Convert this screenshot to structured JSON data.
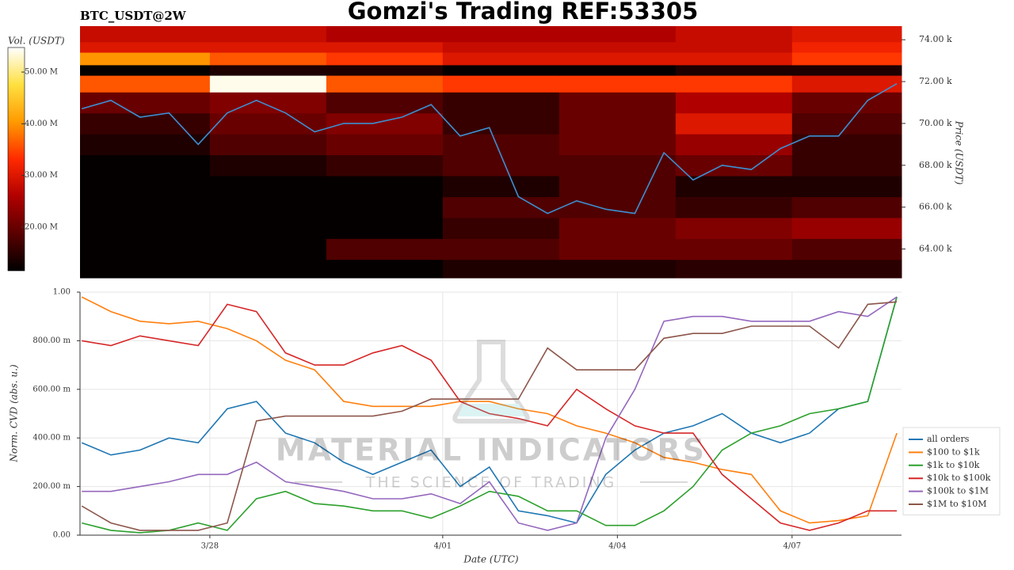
{
  "chart_data": [
    {
      "type": "heatmap",
      "title": "Gomzi's Trading REF:53305",
      "subtitle": "BTC_USDT@2W",
      "ylabel": "Price (USDT)",
      "xlim": [
        -2.23,
        11.88
      ],
      "ylim": [
        62.62,
        74.65
      ],
      "yticks": [
        {
          "value": 64,
          "label": "64.00 k"
        },
        {
          "value": 66,
          "label": "66.00 k"
        },
        {
          "value": 68,
          "label": "68.00 k"
        },
        {
          "value": 70,
          "label": "70.00 k"
        },
        {
          "value": 72,
          "label": "72.00 k"
        },
        {
          "value": 74,
          "label": "74.00 k"
        }
      ],
      "colorbar": {
        "label": "Vol. (USDT)",
        "lim": [
          11.58,
          54.75
        ],
        "ticks": [
          {
            "value": 20,
            "label": "20.00 M"
          },
          {
            "value": 30,
            "label": "30.00 M"
          },
          {
            "value": 40,
            "label": "40.00 M"
          },
          {
            "value": 50,
            "label": "50.00 M"
          }
        ],
        "colormap": [
          "#000000",
          "#5a0000",
          "#b00000",
          "#ff2a00",
          "#ff9a00",
          "#ffe040",
          "#ffffff"
        ]
      },
      "x_edges": [
        -2.23,
        0,
        2,
        4,
        6,
        8,
        10,
        11.88
      ],
      "y_edges": [
        62.62,
        63.5,
        64.5,
        65.5,
        66.5,
        67.5,
        68.5,
        69.5,
        70.5,
        71.5,
        72.3,
        72.8,
        73.4,
        73.9,
        74.65
      ],
      "z": [
        [
          12,
          12,
          12,
          14,
          14,
          15,
          15
        ],
        [
          12,
          12,
          18,
          18,
          20,
          20,
          18
        ],
        [
          12,
          12,
          12,
          16,
          20,
          22,
          24
        ],
        [
          12,
          12,
          12,
          18,
          18,
          16,
          18
        ],
        [
          12,
          12,
          12,
          14,
          18,
          14,
          14
        ],
        [
          12,
          14,
          16,
          18,
          18,
          20,
          16
        ],
        [
          14,
          18,
          20,
          18,
          20,
          24,
          16
        ],
        [
          16,
          20,
          22,
          16,
          20,
          30,
          18
        ],
        [
          20,
          22,
          18,
          16,
          20,
          26,
          20
        ],
        [
          36,
          54,
          36,
          34,
          34,
          34,
          30
        ],
        [
          12,
          14,
          14,
          12,
          12,
          14,
          14
        ],
        [
          40,
          36,
          34,
          30,
          30,
          30,
          34
        ],
        [
          30,
          30,
          30,
          28,
          28,
          28,
          32
        ],
        [
          28,
          28,
          26,
          26,
          26,
          28,
          30
        ]
      ],
      "price": {
        "color": "#3d8fd1",
        "x": [
          -2.2,
          -1.7,
          -1.2,
          -0.7,
          -0.2,
          0.3,
          0.8,
          1.3,
          1.8,
          2.3,
          2.8,
          3.3,
          3.8,
          4.3,
          4.8,
          5.3,
          5.8,
          6.3,
          6.8,
          7.3,
          7.8,
          8.3,
          8.8,
          9.3,
          9.8,
          10.3,
          10.8,
          11.3,
          11.8
        ],
        "values": [
          70.7,
          71.1,
          70.3,
          70.5,
          69.0,
          70.5,
          71.1,
          70.5,
          69.6,
          70.0,
          70.0,
          70.3,
          70.9,
          69.4,
          69.8,
          66.5,
          65.7,
          66.3,
          65.9,
          65.7,
          68.6,
          67.3,
          68.0,
          67.8,
          68.8,
          69.4,
          69.4,
          71.1,
          71.9
        ]
      }
    },
    {
      "type": "line",
      "xlabel": "Date (UTC)",
      "ylabel": "Norm. CVD (abs. u.)",
      "xlim": [
        -2.23,
        11.88
      ],
      "ylim": [
        0,
        1
      ],
      "grid": true,
      "legend": "right",
      "xticks": [
        {
          "value": 0,
          "label": "3/28"
        },
        {
          "value": 4,
          "label": "4/01"
        },
        {
          "value": 7,
          "label": "4/04"
        },
        {
          "value": 10,
          "label": "4/07"
        }
      ],
      "yticks": [
        {
          "value": 0,
          "label": "0.00"
        },
        {
          "value": 0.2,
          "label": "200.00 m"
        },
        {
          "value": 0.4,
          "label": "400.00 m"
        },
        {
          "value": 0.6,
          "label": "600.00 m"
        },
        {
          "value": 0.8,
          "label": "800.00 m"
        },
        {
          "value": 1,
          "label": "1.00"
        }
      ],
      "x": [
        -2.2,
        -1.7,
        -1.2,
        -0.7,
        -0.2,
        0.3,
        0.8,
        1.3,
        1.8,
        2.3,
        2.8,
        3.3,
        3.8,
        4.3,
        4.8,
        5.3,
        5.8,
        6.3,
        6.8,
        7.3,
        7.8,
        8.3,
        8.8,
        9.3,
        9.8,
        10.3,
        10.8,
        11.3,
        11.8
      ],
      "series": [
        {
          "name": "all orders",
          "color": "#1f77b4",
          "values": [
            0.38,
            0.33,
            0.35,
            0.4,
            0.38,
            0.52,
            0.55,
            0.42,
            0.38,
            0.3,
            0.25,
            0.3,
            0.35,
            0.2,
            0.28,
            0.1,
            0.08,
            0.05,
            0.25,
            0.35,
            0.42,
            0.45,
            0.5,
            0.42,
            0.38,
            0.42,
            0.52,
            0.55,
            0.98
          ]
        },
        {
          "name": "$100 to $1k",
          "color": "#ff7f0e",
          "values": [
            0.98,
            0.92,
            0.88,
            0.87,
            0.88,
            0.85,
            0.8,
            0.72,
            0.68,
            0.55,
            0.53,
            0.53,
            0.53,
            0.55,
            0.55,
            0.52,
            0.5,
            0.45,
            0.42,
            0.38,
            0.32,
            0.3,
            0.27,
            0.25,
            0.1,
            0.05,
            0.06,
            0.08,
            0.42
          ]
        },
        {
          "name": "$1k to $10k",
          "color": "#2ca02c",
          "values": [
            0.05,
            0.02,
            0.01,
            0.02,
            0.05,
            0.02,
            0.15,
            0.18,
            0.13,
            0.12,
            0.1,
            0.1,
            0.07,
            0.12,
            0.18,
            0.16,
            0.1,
            0.1,
            0.04,
            0.04,
            0.1,
            0.2,
            0.35,
            0.42,
            0.45,
            0.5,
            0.52,
            0.55,
            0.98
          ]
        },
        {
          "name": "$10k to $100k",
          "color": "#d62728",
          "values": [
            0.8,
            0.78,
            0.82,
            0.8,
            0.78,
            0.95,
            0.92,
            0.75,
            0.7,
            0.7,
            0.75,
            0.78,
            0.72,
            0.55,
            0.5,
            0.48,
            0.45,
            0.6,
            0.52,
            0.45,
            0.42,
            0.42,
            0.25,
            0.15,
            0.05,
            0.02,
            0.05,
            0.1,
            0.1
          ]
        },
        {
          "name": "$100k to $1M",
          "color": "#9467bd",
          "values": [
            0.18,
            0.18,
            0.2,
            0.22,
            0.25,
            0.25,
            0.3,
            0.22,
            0.2,
            0.18,
            0.15,
            0.15,
            0.17,
            0.13,
            0.22,
            0.05,
            0.02,
            0.05,
            0.4,
            0.6,
            0.88,
            0.9,
            0.9,
            0.88,
            0.88,
            0.88,
            0.92,
            0.9,
            0.98
          ]
        },
        {
          "name": "$1M to $10M",
          "color": "#8c564b",
          "values": [
            0.12,
            0.05,
            0.02,
            0.02,
            0.02,
            0.05,
            0.47,
            0.49,
            0.49,
            0.49,
            0.49,
            0.51,
            0.56,
            0.56,
            0.56,
            0.56,
            0.77,
            0.68,
            0.68,
            0.68,
            0.81,
            0.83,
            0.83,
            0.86,
            0.86,
            0.86,
            0.77,
            0.95,
            0.96
          ]
        }
      ]
    }
  ],
  "watermark": {
    "title": "MATERIAL INDICATORS",
    "subtitle": "THE SCIENCE OF TRADING"
  }
}
